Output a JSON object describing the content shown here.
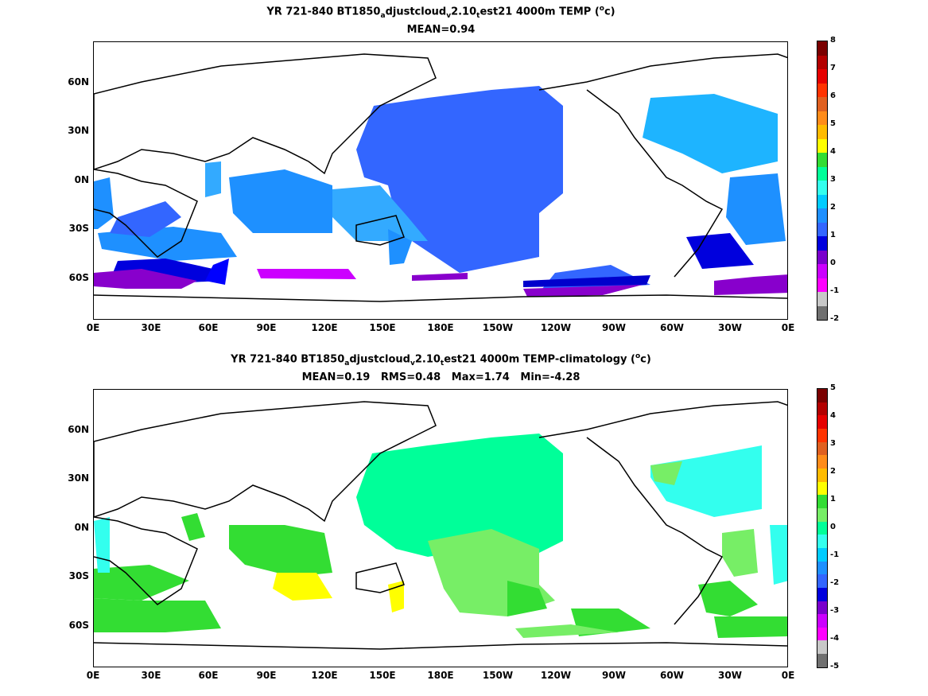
{
  "panels": [
    {
      "title_parts": [
        "YR 721-840 BT1850",
        "a",
        "djustcloud",
        "v",
        "2.10",
        "t",
        "est21 4000m TEMP (",
        "o",
        "c)"
      ],
      "stats": "MEAN=0.94",
      "colorbar": {
        "labels": [
          "8",
          "7",
          "6",
          "5",
          "4",
          "3",
          "2",
          "1",
          "0",
          "-1",
          "-2"
        ],
        "colors": [
          "#7a0000",
          "#b30000",
          "#e60000",
          "#ff3300",
          "#e06020",
          "#ff8c1a",
          "#ffbb00",
          "#ffff00",
          "#33dd33",
          "#00ff99",
          "#33ffee",
          "#00ccff",
          "#1e90ff",
          "#3366ff",
          "#0000dd",
          "#7a00cc",
          "#cc00ff",
          "#ff00ff",
          "#c8c8c8",
          "#707070"
        ]
      }
    },
    {
      "title_parts": [
        "YR 721-840 BT1850",
        "a",
        "djustcloud",
        "v",
        "2.10",
        "t",
        "est21 4000m TEMP-climatology (",
        "o",
        "c)"
      ],
      "stats": "MEAN=0.19   RMS=0.48   Max=1.74   Min=-4.28",
      "colorbar": {
        "labels": [
          "5",
          "4",
          "3",
          "2",
          "1",
          "0",
          "-1",
          "-2",
          "-3",
          "-4",
          "-5"
        ],
        "colors": [
          "#7a0000",
          "#b30000",
          "#e60000",
          "#ff3300",
          "#e06020",
          "#ff8c1a",
          "#ffbb00",
          "#ffff00",
          "#33dd33",
          "#77ee66",
          "#00ff99",
          "#33ffee",
          "#00ccff",
          "#1e90ff",
          "#3366ff",
          "#0000dd",
          "#7a00cc",
          "#cc00ff",
          "#ff00ff",
          "#c8c8c8",
          "#707070"
        ]
      }
    }
  ],
  "axes": {
    "lat_labels": [
      "60N",
      "30N",
      "0N",
      "30S",
      "60S"
    ],
    "lon_labels": [
      "0E",
      "30E",
      "60E",
      "90E",
      "120E",
      "150E",
      "180E",
      "150W",
      "120W",
      "90W",
      "60W",
      "30W",
      "0E"
    ]
  }
}
